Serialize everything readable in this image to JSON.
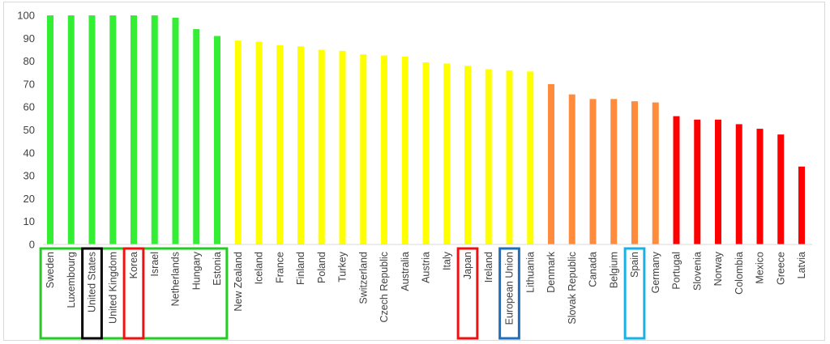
{
  "chart_data": {
    "type": "bar",
    "title": "",
    "xlabel": "",
    "ylabel": "",
    "ylim": [
      0,
      100
    ],
    "yticks": [
      0,
      10,
      20,
      30,
      40,
      50,
      60,
      70,
      80,
      90,
      100
    ],
    "grid": false,
    "legend": "none",
    "colors": {
      "green": "#33ee33",
      "yellow": "#ffff00",
      "orange": "#ff8c3c",
      "red": "#ff0000"
    },
    "categories": [
      "Sweden",
      "Luxembourg",
      "United States",
      "United Kingdom",
      "Korea",
      "Israel",
      "Netherlands",
      "Hungary",
      "Estonia",
      "New Zealand",
      "Iceland",
      "France",
      "Finland",
      "Poland",
      "Turkey",
      "Switzerland",
      "Czech Republic",
      "Australia",
      "Austria",
      "Italy",
      "Japan",
      "Ireland",
      "European Union",
      "Lithuania",
      "Denmark",
      "Slovak Republic",
      "Canada",
      "Belgium",
      "Spain",
      "Germany",
      "Portugal",
      "Slovenia",
      "Norway",
      "Colombia",
      "Mexico",
      "Greece",
      "Latvia"
    ],
    "values": [
      100,
      100,
      100,
      100,
      100,
      100,
      99,
      94,
      91,
      89,
      88.5,
      87,
      86.5,
      85,
      84.5,
      83,
      82.5,
      82,
      79.5,
      79,
      78,
      76.5,
      76,
      75.5,
      70,
      65.5,
      63.5,
      63.5,
      62.5,
      62,
      56,
      54.5,
      54.5,
      52.5,
      50.5,
      48,
      34
    ],
    "bar_colors": [
      "green",
      "green",
      "green",
      "green",
      "green",
      "green",
      "green",
      "green",
      "green",
      "yellow",
      "yellow",
      "yellow",
      "yellow",
      "yellow",
      "yellow",
      "yellow",
      "yellow",
      "yellow",
      "yellow",
      "yellow",
      "yellow",
      "yellow",
      "yellow",
      "yellow",
      "orange",
      "orange",
      "orange",
      "orange",
      "orange",
      "orange",
      "red",
      "red",
      "red",
      "red",
      "red",
      "red",
      "red"
    ],
    "highlight_boxes": [
      {
        "from": "Sweden",
        "to": "Estonia",
        "color": "#22cc22"
      },
      {
        "from": "United States",
        "to": "United States",
        "color": "#000000"
      },
      {
        "from": "Korea",
        "to": "Korea",
        "color": "#ee1111"
      },
      {
        "from": "Japan",
        "to": "Japan",
        "color": "#ee1111"
      },
      {
        "from": "European Union",
        "to": "European Union",
        "color": "#1f6fbf"
      },
      {
        "from": "Spain",
        "to": "Spain",
        "color": "#19b2e6"
      }
    ]
  }
}
